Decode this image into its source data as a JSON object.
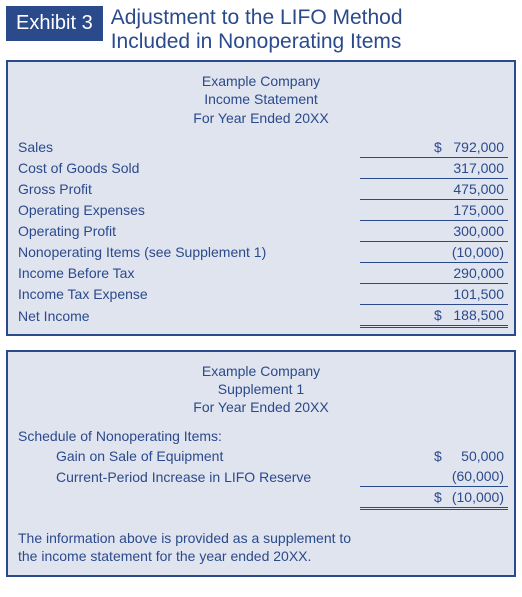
{
  "colors": {
    "brand": "#2b4a8b",
    "panel_bg": "#e0e4ef",
    "page_bg": "#ffffff"
  },
  "header": {
    "badge": "Exhibit 3",
    "title_line1": "Adjustment to the LIFO Method",
    "title_line2": "Included in Nonoperating Items"
  },
  "income_statement": {
    "company": "Example Company",
    "subtitle": "Income Statement",
    "period": "For Year Ended 20XX",
    "rows": [
      {
        "label": "Sales",
        "amount": "792,000",
        "currency": "$",
        "rule": "single"
      },
      {
        "label": "Cost of Goods Sold",
        "amount": "317,000",
        "currency": "",
        "rule": "single"
      },
      {
        "label": "Gross Profit",
        "amount": "475,000",
        "currency": "",
        "rule": "single"
      },
      {
        "label": "Operating Expenses",
        "amount": "175,000",
        "currency": "",
        "rule": "single"
      },
      {
        "label": "Operating Profit",
        "amount": "300,000",
        "currency": "",
        "rule": "single"
      },
      {
        "label": "Nonoperating Items (see Supplement 1)",
        "amount": "(10,000)",
        "currency": "",
        "rule": "single"
      },
      {
        "label": "Income Before Tax",
        "amount": "290,000",
        "currency": "",
        "rule": "single"
      },
      {
        "label": "Income Tax Expense",
        "amount": "101,500",
        "currency": "",
        "rule": "single"
      },
      {
        "label": "Net Income",
        "amount": "188,500",
        "currency": "$",
        "rule": "double"
      }
    ]
  },
  "supplement": {
    "company": "Example Company",
    "subtitle": "Supplement 1",
    "period": "For Year Ended 20XX",
    "schedule_title": "Schedule of Nonoperating Items:",
    "rows": [
      {
        "label": "Gain on Sale of Equipment",
        "amount": "50,000",
        "currency": "$",
        "rule": "none",
        "indent": true
      },
      {
        "label": "Current-Period Increase in LIFO Reserve",
        "amount": "(60,000)",
        "currency": "",
        "rule": "single",
        "indent": true
      },
      {
        "label": "",
        "amount": "(10,000)",
        "currency": "$",
        "rule": "double",
        "indent": false
      }
    ],
    "footnote_line1": "The information above is provided as a supplement to",
    "footnote_line2": "the income statement for the year ended 20XX."
  },
  "typography": {
    "title_fontsize_pt": 16,
    "body_fontsize_pt": 10.5,
    "font_family": "Arial"
  }
}
